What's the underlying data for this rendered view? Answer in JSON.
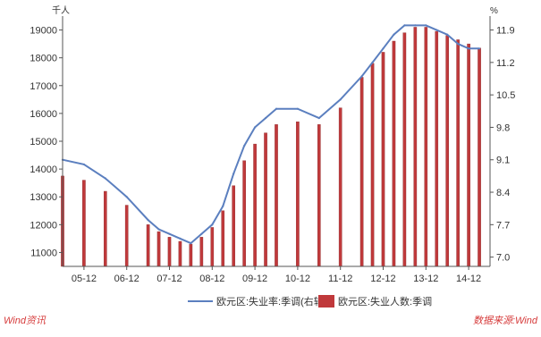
{
  "chart_data": {
    "type": "bar",
    "left_unit": "千人",
    "right_unit": "%",
    "x_tick_labels": [
      "05-12",
      "06-12",
      "07-12",
      "08-12",
      "09-12",
      "10-12",
      "11-12",
      "12-12",
      "13-12",
      "14-12"
    ],
    "left_ticks": [
      11000,
      12000,
      13000,
      14000,
      15000,
      16000,
      17000,
      18000,
      19000
    ],
    "right_ticks": [
      7.0,
      7.7,
      8.4,
      9.1,
      9.8,
      10.5,
      11.2,
      11.9
    ],
    "left_ylim": [
      10500,
      19500
    ],
    "right_ylim": [
      6.8,
      12.2
    ],
    "x_range": [
      2005.0,
      2015.0
    ],
    "series": [
      {
        "name": "欧元区:失业人数:季调",
        "type": "bar",
        "axis": "left",
        "color": "#c0393b",
        "x": [
          2005.0,
          2005.5,
          2006.0,
          2006.5,
          2007.0,
          2007.25,
          2007.5,
          2007.75,
          2008.0,
          2008.25,
          2008.5,
          2008.75,
          2009.0,
          2009.25,
          2009.5,
          2009.75,
          2010.0,
          2010.5,
          2011.0,
          2011.5,
          2012.0,
          2012.25,
          2012.5,
          2012.75,
          2013.0,
          2013.25,
          2013.5,
          2013.75,
          2014.0,
          2014.25,
          2014.5,
          2014.75
        ],
        "values": [
          13750,
          13600,
          13200,
          12700,
          12000,
          11750,
          11550,
          11400,
          11300,
          11550,
          11900,
          12500,
          13400,
          14300,
          14900,
          15300,
          15600,
          15700,
          15600,
          16200,
          17300,
          17800,
          18200,
          18600,
          18900,
          19100,
          19100,
          18950,
          18800,
          18650,
          18500,
          18350
        ]
      },
      {
        "name": "欧元区:失业率:季调(右轴)",
        "type": "line",
        "axis": "right",
        "color": "#5b7fbf",
        "x": [
          2005.0,
          2005.5,
          2006.0,
          2006.5,
          2007.0,
          2007.25,
          2007.5,
          2007.75,
          2008.0,
          2008.25,
          2008.5,
          2008.75,
          2009.0,
          2009.25,
          2009.5,
          2009.75,
          2010.0,
          2010.5,
          2011.0,
          2011.5,
          2012.0,
          2012.25,
          2012.5,
          2012.75,
          2013.0,
          2013.25,
          2013.5,
          2013.75,
          2014.0,
          2014.25,
          2014.5,
          2014.75
        ],
        "values": [
          9.1,
          9.0,
          8.7,
          8.3,
          7.8,
          7.6,
          7.5,
          7.4,
          7.3,
          7.5,
          7.7,
          8.1,
          8.8,
          9.4,
          9.8,
          10.0,
          10.2,
          10.2,
          10.0,
          10.4,
          10.9,
          11.2,
          11.5,
          11.8,
          12.0,
          12.0,
          12.0,
          11.9,
          11.8,
          11.6,
          11.5,
          11.5
        ]
      }
    ],
    "legend": {
      "placement": "bottom",
      "entries": [
        "欧元区:失业率:季调(右轴)",
        "欧元区:失业人数:季调"
      ]
    },
    "grid": false
  },
  "footer": {
    "source_left": "Wind资讯",
    "source_right": "数据来源:Wind",
    "color": "#d63c3c"
  }
}
